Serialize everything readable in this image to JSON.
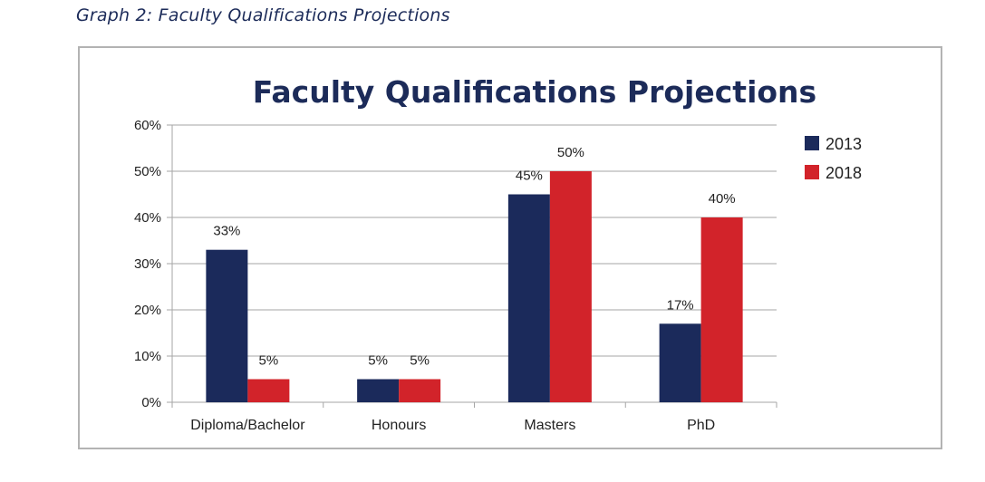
{
  "caption": "Graph 2: Faculty Qualifications Projections",
  "chart_data": {
    "type": "bar",
    "title": "Faculty Qualifications Projections",
    "categories": [
      "Diploma/Bachelor",
      "Honours",
      "Masters",
      "PhD"
    ],
    "series": [
      {
        "name": "2013",
        "values": [
          33,
          5,
          45,
          17
        ],
        "labels": [
          "33%",
          "5%",
          "45%",
          "17%"
        ],
        "color": "#1b2a5b"
      },
      {
        "name": "2018",
        "values": [
          5,
          5,
          50,
          40
        ],
        "labels": [
          "5%",
          "5%",
          "50%",
          "40%"
        ],
        "color": "#d2232a"
      }
    ],
    "yticks": [
      "0%",
      "10%",
      "20%",
      "30%",
      "40%",
      "50%",
      "60%"
    ],
    "ylim": [
      0,
      60
    ],
    "grid": true,
    "legend": "right",
    "xlabel": "",
    "ylabel": ""
  }
}
